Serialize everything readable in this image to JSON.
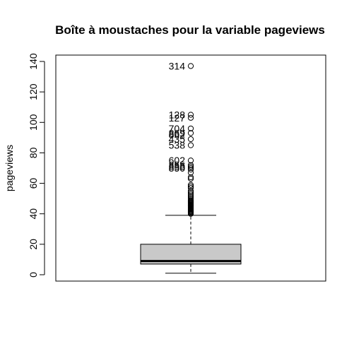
{
  "chart_data": {
    "type": "boxplot",
    "title": "Boîte à moustaches pour la variable pageviews",
    "ylabel": "pageviews",
    "xlabel": "",
    "ylim": [
      0,
      140
    ],
    "yticks": [
      0,
      20,
      40,
      60,
      80,
      100,
      120,
      140
    ],
    "grid": false,
    "colors": {
      "box_fill": "#c9c9c9",
      "stroke": "#000000"
    },
    "box": {
      "whisker_low": 1,
      "q1": 7,
      "median": 9,
      "q3": 20,
      "whisker_high": 39
    },
    "outliers": [
      40,
      40.5,
      41,
      41.5,
      42,
      42.5,
      43,
      43.5,
      44,
      44.5,
      45,
      45.5,
      46,
      46.5,
      47,
      47.5,
      48,
      48.5,
      49,
      50,
      51,
      52,
      53,
      54,
      55,
      57,
      58,
      59,
      63,
      64,
      67,
      69,
      70,
      71,
      72,
      75,
      85,
      89,
      93,
      96,
      103,
      105,
      137
    ],
    "outlier_labels": [
      {
        "label": "314",
        "y": 137
      },
      {
        "label": "128",
        "y": 105
      },
      {
        "label": "127",
        "y": 103
      },
      {
        "label": "704",
        "y": 96
      },
      {
        "label": "869",
        "y": 93
      },
      {
        "label": "862",
        "y": 92
      },
      {
        "label": "435",
        "y": 89
      },
      {
        "label": "538",
        "y": 85
      },
      {
        "label": "602",
        "y": 75
      },
      {
        "label": "855",
        "y": 72
      },
      {
        "label": "856",
        "y": 71
      },
      {
        "label": "850",
        "y": 70
      }
    ]
  }
}
